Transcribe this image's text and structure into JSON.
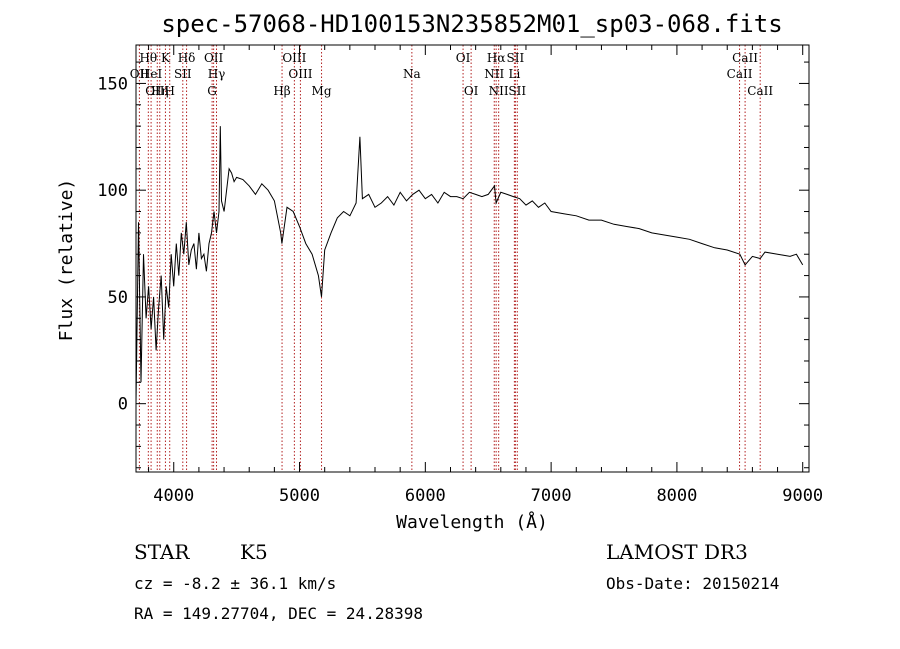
{
  "chart_data": {
    "type": "line",
    "title": "spec-57068-HD100153N235852M01_sp03-068.fits",
    "xlabel": "Wavelength (Å)",
    "ylabel": "Flux (relative)",
    "xlim": [
      3700,
      9050
    ],
    "ylim": [
      -32,
      168
    ],
    "x_ticks": [
      {
        "value": 4000,
        "label": "4000"
      },
      {
        "value": 5000,
        "label": "5000"
      },
      {
        "value": 6000,
        "label": "6000"
      },
      {
        "value": 7000,
        "label": "7000"
      },
      {
        "value": 8000,
        "label": "8000"
      },
      {
        "value": 9000,
        "label": "9000"
      }
    ],
    "y_ticks": [
      {
        "value": 0,
        "label": "0"
      },
      {
        "value": 50,
        "label": "50"
      },
      {
        "value": 100,
        "label": "100"
      },
      {
        "value": 150,
        "label": "150"
      }
    ],
    "series": [
      {
        "name": "flux",
        "x": [
          3700,
          3720,
          3740,
          3760,
          3780,
          3800,
          3820,
          3840,
          3860,
          3880,
          3900,
          3920,
          3940,
          3960,
          3980,
          4000,
          4020,
          4040,
          4060,
          4080,
          4100,
          4120,
          4140,
          4160,
          4180,
          4200,
          4220,
          4240,
          4260,
          4280,
          4300,
          4320,
          4340,
          4360,
          4370,
          4380,
          4400,
          4420,
          4440,
          4460,
          4480,
          4500,
          4550,
          4600,
          4650,
          4700,
          4750,
          4800,
          4850,
          4860,
          4900,
          4950,
          5000,
          5050,
          5100,
          5150,
          5175,
          5200,
          5250,
          5300,
          5350,
          5400,
          5450,
          5480,
          5500,
          5550,
          5600,
          5650,
          5700,
          5750,
          5800,
          5850,
          5900,
          5950,
          6000,
          6050,
          6100,
          6150,
          6200,
          6250,
          6300,
          6350,
          6400,
          6450,
          6500,
          6550,
          6563,
          6600,
          6650,
          6700,
          6750,
          6800,
          6850,
          6900,
          6950,
          7000,
          7100,
          7200,
          7300,
          7400,
          7500,
          7600,
          7700,
          7800,
          7900,
          8000,
          8100,
          8200,
          8300,
          8400,
          8500,
          8542,
          8600,
          8662,
          8700,
          8800,
          8900,
          8950,
          9000
        ],
        "values": [
          0,
          85,
          10,
          70,
          40,
          55,
          35,
          50,
          25,
          45,
          60,
          30,
          55,
          45,
          70,
          55,
          75,
          60,
          80,
          70,
          85,
          65,
          72,
          75,
          63,
          80,
          68,
          70,
          62,
          75,
          80,
          90,
          80,
          90,
          130,
          95,
          90,
          100,
          110,
          108,
          104,
          106,
          105,
          102,
          98,
          103,
          100,
          95,
          80,
          75,
          92,
          90,
          83,
          75,
          70,
          60,
          50,
          72,
          80,
          87,
          90,
          88,
          94,
          125,
          96,
          98,
          92,
          94,
          97,
          93,
          99,
          95,
          98,
          100,
          96,
          98,
          94,
          99,
          97,
          97,
          96,
          99,
          98,
          97,
          98,
          102,
          94,
          99,
          98,
          97,
          96,
          93,
          95,
          92,
          94,
          90,
          89,
          88,
          86,
          86,
          84,
          83,
          82,
          80,
          79,
          78,
          77,
          75,
          73,
          72,
          70,
          65,
          69,
          68,
          71,
          70,
          69,
          70,
          65
        ]
      }
    ],
    "spectral_lines": [
      {
        "label": "Hθ",
        "x": 3798,
        "row": 1
      },
      {
        "label": "OII",
        "x": 3727,
        "row": 2
      },
      {
        "label": "HeI",
        "x": 3820,
        "row": 2
      },
      {
        "label": "OIII",
        "x": 3869,
        "row": 3
      },
      {
        "label": "Hη",
        "x": 3889,
        "row": 3
      },
      {
        "label": "K",
        "x": 3934,
        "row": 1
      },
      {
        "label": "H",
        "x": 3968,
        "row": 3
      },
      {
        "label": "SII",
        "x": 4072,
        "row": 2
      },
      {
        "label": "Hδ",
        "x": 4102,
        "row": 1
      },
      {
        "label": "OII",
        "x": 4317,
        "row": 1
      },
      {
        "label": "Hγ",
        "x": 4340,
        "row": 2
      },
      {
        "label": "G",
        "x": 4305,
        "row": 3
      },
      {
        "label": "Hβ",
        "x": 4861,
        "row": 3
      },
      {
        "label": "OIII",
        "x": 4959,
        "row": 1
      },
      {
        "label": "OIII",
        "x": 5007,
        "row": 2
      },
      {
        "label": "Mg",
        "x": 5175,
        "row": 3
      },
      {
        "label": "Na",
        "x": 5893,
        "row": 2
      },
      {
        "label": "OI",
        "x": 6300,
        "row": 1
      },
      {
        "label": "OI",
        "x": 6364,
        "row": 3
      },
      {
        "label": "Hα",
        "x": 6563,
        "row": 1
      },
      {
        "label": "NII",
        "x": 6548,
        "row": 2
      },
      {
        "label": "NII",
        "x": 6583,
        "row": 3
      },
      {
        "label": "SII",
        "x": 6716,
        "row": 1
      },
      {
        "label": "Li",
        "x": 6708,
        "row": 2
      },
      {
        "label": "SII",
        "x": 6731,
        "row": 3
      },
      {
        "label": "CaII",
        "x": 8542,
        "row": 1
      },
      {
        "label": "CaII",
        "x": 8498,
        "row": 2
      },
      {
        "label": "CaII",
        "x": 8662,
        "row": 3
      }
    ]
  },
  "info": {
    "object_class": "STAR",
    "subclass": "K5",
    "survey": "LAMOST DR3",
    "cz": "cz = -8.2 ± 36.1 km/s",
    "obs_date": "Obs-Date: 20150214",
    "coords": "RA = 149.27704, DEC =  24.28398"
  }
}
